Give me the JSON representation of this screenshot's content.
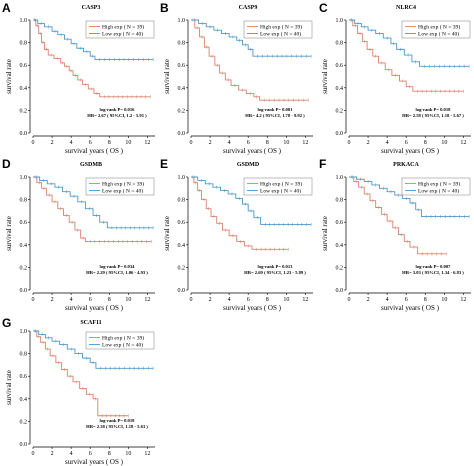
{
  "page": {
    "shared": {
      "xlabel": "survival years ( OS )",
      "ylabel": "survival rate",
      "high_color": "#d8826b",
      "low_color": "#4f97c8",
      "high_label": "High exp ( N = 39)",
      "low_label": "Low exp ( N = 40)",
      "x_ticks": [
        "0",
        "2",
        "4",
        "6",
        "8",
        "10",
        "12"
      ],
      "y_ticks": [
        "0.0",
        "0.2",
        "0.4",
        "0.6",
        "0.8",
        "1.0"
      ]
    }
  },
  "chart_data": [
    {
      "type": "line",
      "panel": "A",
      "title": "CASP3",
      "xlabel": "survival years ( OS )",
      "ylabel": "survival rate",
      "xlim": [
        0,
        12.8
      ],
      "ylim": [
        0,
        1
      ],
      "legend": "top-right",
      "stat_line1": "log-rank P= 0.016",
      "stat_line2": "HR= 2.67 ( 95%CI, 1.2 - 5.91 )",
      "series": [
        {
          "name": "High exp ( N = 39)",
          "color": "#d8826b",
          "points": [
            [
              0,
              1
            ],
            [
              0.3,
              0.95
            ],
            [
              0.6,
              0.88
            ],
            [
              0.9,
              0.8
            ],
            [
              1.2,
              0.74
            ],
            [
              1.6,
              0.69
            ],
            [
              2.2,
              0.66
            ],
            [
              2.9,
              0.62
            ],
            [
              3.3,
              0.59
            ],
            [
              3.8,
              0.55
            ],
            [
              4.2,
              0.51
            ],
            [
              4.7,
              0.47
            ],
            [
              5.2,
              0.43
            ],
            [
              5.8,
              0.39
            ],
            [
              6.4,
              0.35
            ],
            [
              7,
              0.32
            ],
            [
              12.3,
              0.32
            ]
          ]
        },
        {
          "name": "Low exp ( N = 40)",
          "color": "#4f97c8",
          "points": [
            [
              0,
              1
            ],
            [
              0.5,
              0.97
            ],
            [
              1.2,
              0.94
            ],
            [
              2,
              0.9
            ],
            [
              2.6,
              0.87
            ],
            [
              3.3,
              0.83
            ],
            [
              4,
              0.79
            ],
            [
              4.6,
              0.75
            ],
            [
              5.3,
              0.72
            ],
            [
              6,
              0.68
            ],
            [
              6.5,
              0.65
            ],
            [
              12.6,
              0.65
            ]
          ]
        }
      ]
    },
    {
      "type": "line",
      "panel": "B",
      "title": "CASP9",
      "xlabel": "survival years ( OS )",
      "ylabel": "survival rate",
      "xlim": [
        0,
        12.8
      ],
      "ylim": [
        0,
        1
      ],
      "legend": "top-right",
      "stat_line1": "log-rank P= 0.001",
      "stat_line2": "HR= 4.2 ( 95%CI, 1.78 - 9.92 )",
      "series": [
        {
          "name": "High exp ( N = 39)",
          "color": "#d8826b",
          "points": [
            [
              0,
              1
            ],
            [
              0.4,
              0.93
            ],
            [
              0.9,
              0.85
            ],
            [
              1.4,
              0.76
            ],
            [
              1.9,
              0.68
            ],
            [
              2.5,
              0.6
            ],
            [
              3,
              0.53
            ],
            [
              3.6,
              0.47
            ],
            [
              4.2,
              0.42
            ],
            [
              5,
              0.38
            ],
            [
              5.8,
              0.35
            ],
            [
              6.6,
              0.32
            ],
            [
              7.2,
              0.29
            ],
            [
              12.3,
              0.29
            ]
          ]
        },
        {
          "name": "Low exp ( N = 40)",
          "color": "#4f97c8",
          "points": [
            [
              0,
              1
            ],
            [
              0.8,
              0.97
            ],
            [
              1.6,
              0.94
            ],
            [
              2.4,
              0.91
            ],
            [
              3.2,
              0.88
            ],
            [
              4,
              0.85
            ],
            [
              4.8,
              0.82
            ],
            [
              5.4,
              0.78
            ],
            [
              6,
              0.74
            ],
            [
              6.5,
              0.68
            ],
            [
              12.6,
              0.68
            ]
          ]
        }
      ]
    },
    {
      "type": "line",
      "panel": "C",
      "title": "NLRC4",
      "xlabel": "survival years ( OS )",
      "ylabel": "survival rate",
      "xlim": [
        0,
        12.8
      ],
      "ylim": [
        0,
        1
      ],
      "legend": "top-right",
      "stat_line1": "log-rank P= 0.018",
      "stat_line2": "HR= 2.58 ( 95%CI, 1.18 - 5.67 )",
      "series": [
        {
          "name": "High exp ( N = 39)",
          "color": "#d8826b",
          "points": [
            [
              0,
              1
            ],
            [
              0.4,
              0.95
            ],
            [
              0.9,
              0.88
            ],
            [
              1.4,
              0.81
            ],
            [
              1.9,
              0.74
            ],
            [
              2.5,
              0.68
            ],
            [
              3.1,
              0.62
            ],
            [
              3.8,
              0.56
            ],
            [
              4.5,
              0.51
            ],
            [
              5.3,
              0.46
            ],
            [
              6,
              0.41
            ],
            [
              6.7,
              0.37
            ],
            [
              12,
              0.37
            ]
          ]
        },
        {
          "name": "Low exp ( N = 40)",
          "color": "#4f97c8",
          "points": [
            [
              0,
              1
            ],
            [
              0.6,
              0.97
            ],
            [
              1.3,
              0.94
            ],
            [
              2,
              0.91
            ],
            [
              2.8,
              0.88
            ],
            [
              3.6,
              0.84
            ],
            [
              4.4,
              0.79
            ],
            [
              5,
              0.74
            ],
            [
              5.8,
              0.69
            ],
            [
              6.6,
              0.63
            ],
            [
              7.4,
              0.59
            ],
            [
              12.6,
              0.59
            ]
          ]
        }
      ]
    },
    {
      "type": "line",
      "panel": "D",
      "title": "GSDMB",
      "xlabel": "survival years ( OS )",
      "ylabel": "survival rate",
      "xlim": [
        0,
        12.8
      ],
      "ylim": [
        0,
        1
      ],
      "legend": "top-right",
      "stat_line1": "log-rank P= 0.034",
      "stat_line2": "HR= 2.29 ( 95%CI, 1.06 - 4.93 )",
      "series": [
        {
          "name": "High exp ( N = 39)",
          "color": "#d8826b",
          "points": [
            [
              0,
              1
            ],
            [
              0.4,
              0.95
            ],
            [
              0.9,
              0.9
            ],
            [
              1.4,
              0.84
            ],
            [
              2,
              0.78
            ],
            [
              2.6,
              0.72
            ],
            [
              3.2,
              0.66
            ],
            [
              3.8,
              0.6
            ],
            [
              4.4,
              0.53
            ],
            [
              5,
              0.46
            ],
            [
              5.5,
              0.43
            ],
            [
              12.4,
              0.43
            ]
          ]
        },
        {
          "name": "Low exp ( N = 40)",
          "color": "#4f97c8",
          "points": [
            [
              0,
              1
            ],
            [
              0.7,
              0.97
            ],
            [
              1.5,
              0.94
            ],
            [
              2.3,
              0.91
            ],
            [
              3.1,
              0.87
            ],
            [
              3.9,
              0.83
            ],
            [
              4.7,
              0.78
            ],
            [
              5.5,
              0.72
            ],
            [
              6.3,
              0.66
            ],
            [
              7,
              0.6
            ],
            [
              7.8,
              0.55
            ],
            [
              12.6,
              0.55
            ]
          ]
        }
      ]
    },
    {
      "type": "line",
      "panel": "E",
      "title": "GSDMD",
      "xlabel": "survival years ( OS )",
      "ylabel": "survival rate",
      "xlim": [
        0,
        12.8
      ],
      "ylim": [
        0,
        1
      ],
      "legend": "top-right",
      "stat_line1": "log-rank P= 0.013",
      "stat_line2": "HR= 2.69 ( 95%CI, 1.23 - 5.89 )",
      "series": [
        {
          "name": "High exp ( N = 39)",
          "color": "#d8826b",
          "points": [
            [
              0,
              1
            ],
            [
              0.3,
              0.95
            ],
            [
              0.7,
              0.88
            ],
            [
              1.1,
              0.8
            ],
            [
              1.6,
              0.72
            ],
            [
              2.1,
              0.65
            ],
            [
              2.7,
              0.59
            ],
            [
              3.3,
              0.53
            ],
            [
              4,
              0.48
            ],
            [
              4.8,
              0.43
            ],
            [
              5.6,
              0.39
            ],
            [
              6.4,
              0.36
            ],
            [
              10.2,
              0.36
            ]
          ]
        },
        {
          "name": "Low exp ( N = 40)",
          "color": "#4f97c8",
          "points": [
            [
              0,
              1
            ],
            [
              0.7,
              0.97
            ],
            [
              1.5,
              0.94
            ],
            [
              2.3,
              0.91
            ],
            [
              3.1,
              0.88
            ],
            [
              3.9,
              0.85
            ],
            [
              4.7,
              0.81
            ],
            [
              5.4,
              0.76
            ],
            [
              6,
              0.7
            ],
            [
              6.6,
              0.64
            ],
            [
              7.3,
              0.58
            ],
            [
              12.6,
              0.58
            ]
          ]
        }
      ]
    },
    {
      "type": "line",
      "panel": "F",
      "title": "PRKACA",
      "xlabel": "survival years ( OS )",
      "ylabel": "survival rate",
      "xlim": [
        0,
        12.8
      ],
      "ylim": [
        0,
        1
      ],
      "legend": "top-right",
      "stat_line1": "log-rank P= 0.007",
      "stat_line2": "HR= 3.03 ( 95%CI, 1.34 - 6.83 )",
      "series": [
        {
          "name": "High exp ( N = 39)",
          "color": "#d8826b",
          "points": [
            [
              0,
              1
            ],
            [
              0.5,
              0.96
            ],
            [
              1,
              0.91
            ],
            [
              1.6,
              0.85
            ],
            [
              2.2,
              0.79
            ],
            [
              2.8,
              0.73
            ],
            [
              3.4,
              0.67
            ],
            [
              4,
              0.61
            ],
            [
              4.6,
              0.55
            ],
            [
              5.2,
              0.49
            ],
            [
              5.8,
              0.43
            ],
            [
              6.4,
              0.38
            ],
            [
              7.2,
              0.32
            ],
            [
              10.2,
              0.32
            ]
          ]
        },
        {
          "name": "Low exp ( N = 40)",
          "color": "#4f97c8",
          "points": [
            [
              0,
              1
            ],
            [
              0.8,
              0.98
            ],
            [
              1.6,
              0.96
            ],
            [
              2.4,
              0.93
            ],
            [
              3.2,
              0.9
            ],
            [
              4,
              0.87
            ],
            [
              4.8,
              0.84
            ],
            [
              5.6,
              0.81
            ],
            [
              6.4,
              0.77
            ],
            [
              7,
              0.71
            ],
            [
              7.6,
              0.65
            ],
            [
              12.6,
              0.65
            ]
          ]
        }
      ]
    },
    {
      "type": "line",
      "panel": "G",
      "title": "SCAF11",
      "xlabel": "survival years ( OS )",
      "ylabel": "survival rate",
      "xlim": [
        0,
        12.8
      ],
      "ylim": [
        0,
        1
      ],
      "legend": "top-right",
      "stat_line1": "log-rank P= 0.018",
      "stat_line2": "HR= 2.58 ( 95%CI, 1.18 - 5.63 )",
      "series": [
        {
          "name": "High exp ( N = 39)",
          "color": "#d8826b",
          "points": [
            [
              0,
              1
            ],
            [
              0.4,
              0.95
            ],
            [
              0.8,
              0.9
            ],
            [
              1.3,
              0.84
            ],
            [
              1.8,
              0.78
            ],
            [
              2.4,
              0.72
            ],
            [
              3,
              0.66
            ],
            [
              3.6,
              0.6
            ],
            [
              4.2,
              0.55
            ],
            [
              4.9,
              0.49
            ],
            [
              5.6,
              0.44
            ],
            [
              6.3,
              0.4
            ],
            [
              6.8,
              0.25
            ],
            [
              10,
              0.25
            ]
          ]
        },
        {
          "name": "Low exp ( N = 40)",
          "color": "#4f97c8",
          "points": [
            [
              0,
              1
            ],
            [
              0.6,
              0.97
            ],
            [
              1.3,
              0.94
            ],
            [
              2,
              0.91
            ],
            [
              2.8,
              0.88
            ],
            [
              3.6,
              0.84
            ],
            [
              4.4,
              0.8
            ],
            [
              5.2,
              0.76
            ],
            [
              6,
              0.72
            ],
            [
              6.6,
              0.67
            ],
            [
              12.6,
              0.67
            ]
          ]
        }
      ]
    }
  ]
}
